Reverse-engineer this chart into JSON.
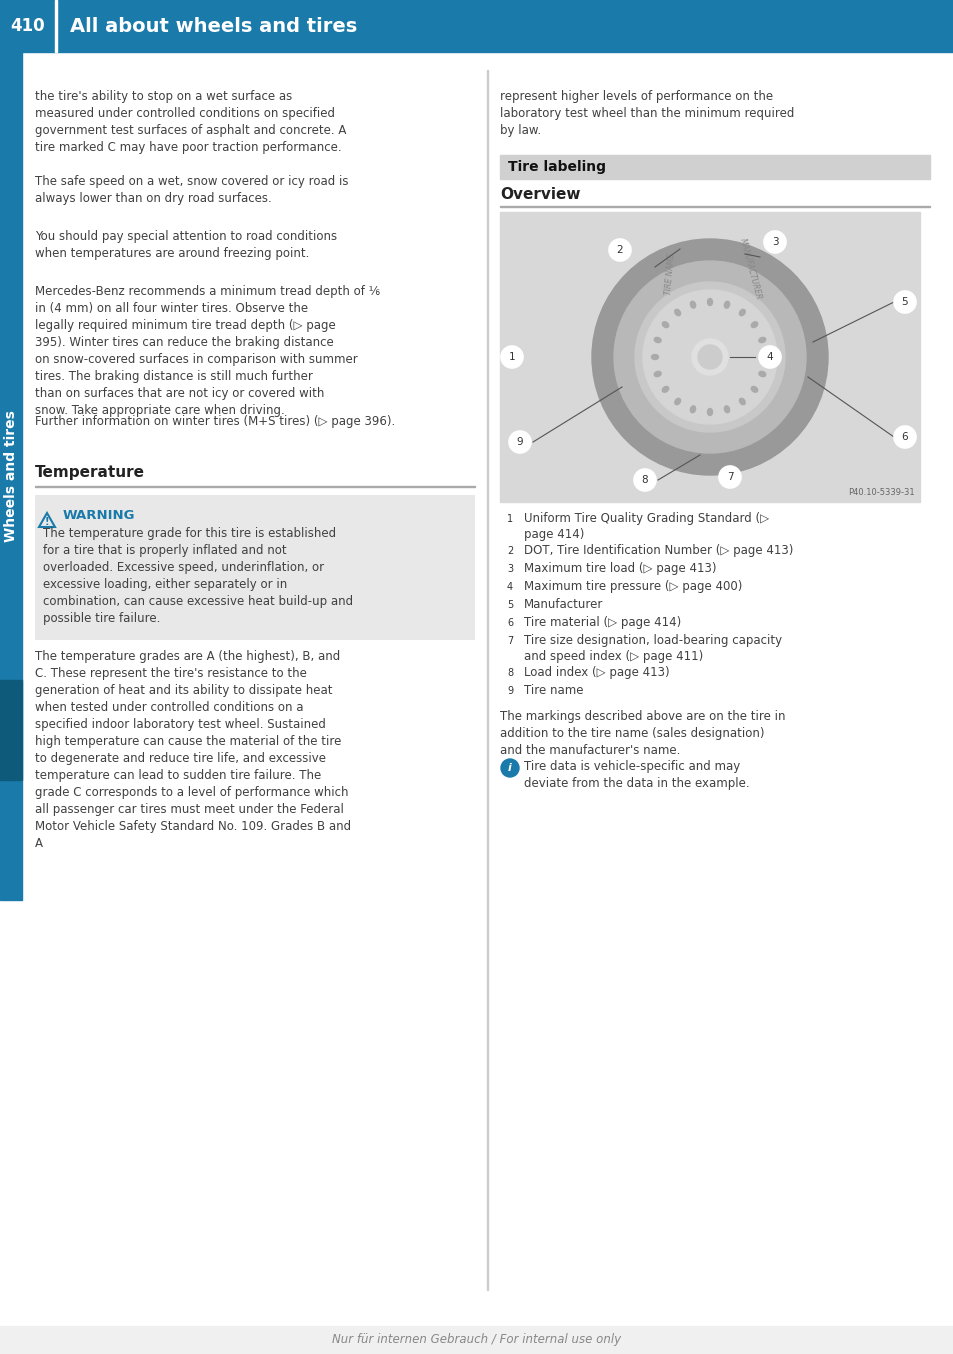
{
  "page_number": "410",
  "header_title": "All about wheels and tires",
  "header_bg": "#1a7aaa",
  "sidebar_text": "Wheels and tires",
  "sidebar_bg": "#1a7aaa",
  "left_col_paragraphs": [
    "the tire's ability to stop on a wet surface as measured under controlled conditions on specified government test surfaces of asphalt and concrete. A tire marked C may have poor traction performance.",
    "The safe speed on a wet, snow covered or icy road is always lower than on dry road surfaces.",
    "You should pay special attention to road conditions when temperatures are around freezing point.",
    "Mercedes-Benz recommends a minimum tread depth of ⅙ in (4 mm) on all four winter tires. Observe the legally required minimum tire tread depth (▷ page 395). Winter tires can reduce the braking distance on snow-covered surfaces in comparison with summer tires. The braking distance is still much further than on surfaces that are not icy or covered with snow. Take appropriate care when driving.",
    "Further information on winter tires (M+S tires) (▷ page 396)."
  ],
  "temp_heading": "Temperature",
  "warning_text": "The temperature grade for this tire is established for a tire that is properly inflated and not overloaded. Excessive speed, underinflation, or excessive loading, either separately or in combination, can cause excessive heat build-up and possible tire failure.",
  "left_col_bottom_paragraphs": [
    "The temperature grades are A (the highest), B, and C. These represent the tire's resistance to the generation of heat and its ability to dissipate heat when tested under controlled conditions on a specified indoor laboratory test wheel. Sustained high temperature can cause the material of the tire to degenerate and reduce tire life, and excessive temperature can lead to sudden tire failure. The grade C corresponds to a level of performance which all passenger car tires must meet under the Federal Motor Vehicle Safety Standard No. 109. Grades B and A"
  ],
  "right_col_top": "represent higher levels of performance on the laboratory test wheel than the minimum required by law.",
  "tire_labeling_heading": "Tire labeling",
  "overview_heading": "Overview",
  "tire_list": [
    [
      "①",
      "Uniform Tire Quality Grading Standard (▷ page 414)"
    ],
    [
      "②",
      "DOT, Tire Identification Number (▷ page 413)"
    ],
    [
      "③",
      "Maximum tire load (▷ page 413)"
    ],
    [
      "④",
      "Maximum tire pressure (▷ page 400)"
    ],
    [
      "⑤",
      "Manufacturer"
    ],
    [
      "⑥",
      "Tire material (▷ page 414)"
    ],
    [
      "⑦",
      "Tire size designation, load-bearing capacity and speed index (▷ page 411)"
    ],
    [
      "⑧",
      "Load index (▷ page 413)"
    ],
    [
      "⑨",
      "Tire name"
    ]
  ],
  "markings_text": "The markings described above are on the tire in addition to the tire name (sales designation) and the manufacturer's name.",
  "info_text": "Tire data is vehicle-specific and may deviate from the data in the example.",
  "footer_text": "Nur für internen Gebrauch / For internal use only",
  "bg_color": "#ffffff",
  "text_color": "#404040",
  "blue_color": "#1a7aaa",
  "warning_bg": "#e8e8e8"
}
